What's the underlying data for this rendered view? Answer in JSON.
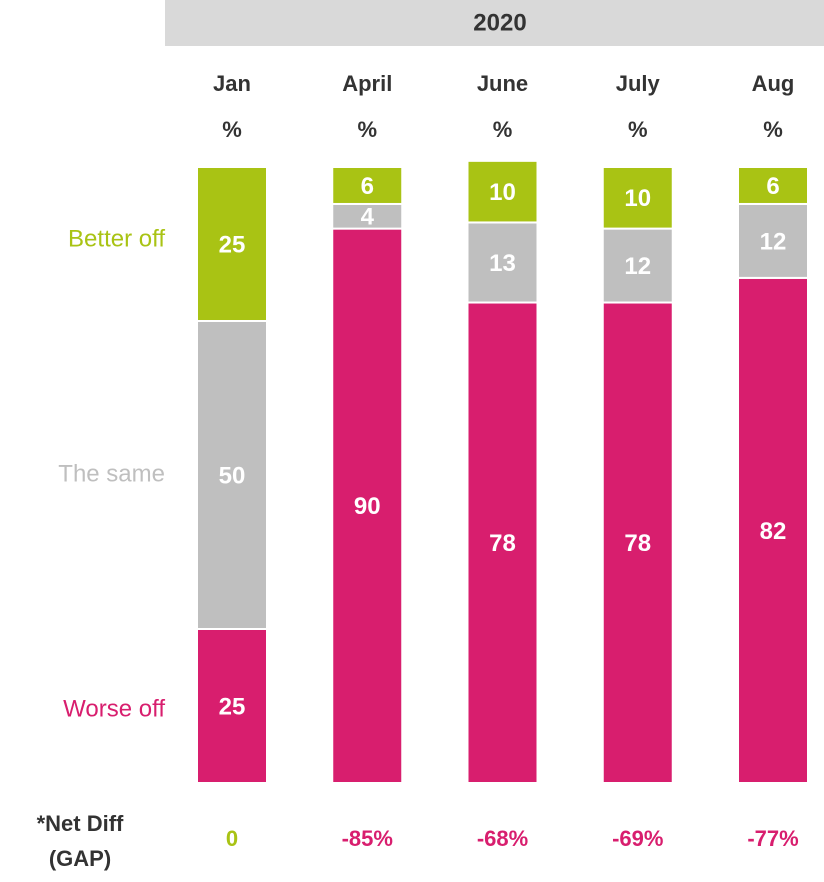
{
  "chart_data": {
    "type": "stacked_bar",
    "title": "2020",
    "categories": [
      "Jan",
      "April",
      "June",
      "July",
      "Aug"
    ],
    "unit_label": "%",
    "series": [
      {
        "name": "Worse off",
        "color": "#d81e6e",
        "values": [
          25,
          90,
          78,
          78,
          82
        ]
      },
      {
        "name": "The same",
        "color": "#bfbfbf",
        "values": [
          50,
          4,
          13,
          12,
          12
        ]
      },
      {
        "name": "Better off",
        "color": "#a9c314",
        "values": [
          25,
          6,
          10,
          10,
          6
        ]
      }
    ],
    "ylim": [
      0,
      100
    ],
    "net_diff": {
      "label": [
        "*Net Diff",
        "(GAP)"
      ],
      "values": [
        0,
        -85,
        -68,
        -69,
        -77
      ],
      "value_labels": [
        "0",
        "-85%",
        "-68%",
        "-69%",
        "-77%"
      ]
    }
  }
}
